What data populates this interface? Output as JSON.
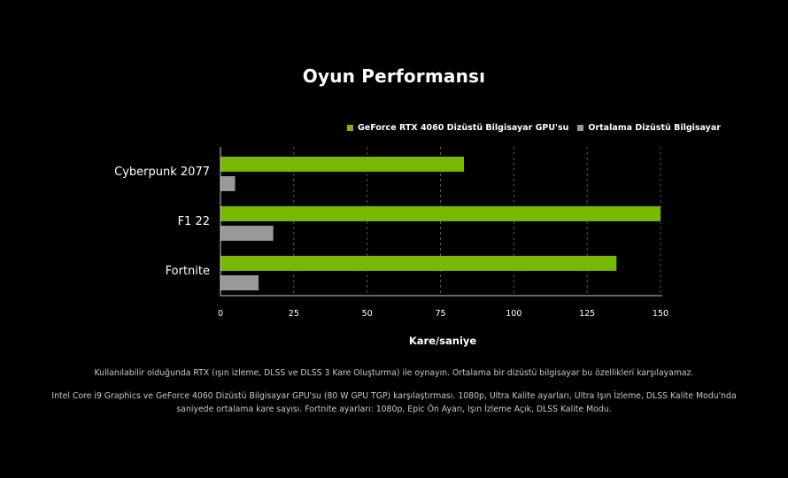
{
  "page": {
    "footnote_1": "Kullanılabilir olduğunda RTX (ışın izleme, DLSS ve DLSS 3 Kare Oluşturma) ile oynayın. Ortalama bir dizüstü bilgisayar bu özellikleri karşılayamaz.",
    "footnote_2": "Intel Core i9 Graphics ve GeForce 4060 Dizüstü Bilgisayar GPU'su (80 W GPU TGP) karşılaştırması. 1080p, Ultra Kalite ayarları, Ultra Işın İzleme, DLSS Kalite Modu'nda saniyede ortalama kare sayısı. Fortnite ayarları: 1080p, Epic Ön Ayarı, Işın İzleme Açık, DLSS Kalite Modu."
  },
  "chart_data": {
    "type": "bar",
    "orientation": "horizontal",
    "title": "Oyun Performansı",
    "xlabel": "Kare/saniye",
    "ylabel": "",
    "categories": [
      "Cyberpunk 2077",
      "F1 22",
      "Fortnite"
    ],
    "series": [
      {
        "name": "GeForce RTX 4060 Dizüstü Bilgisayar GPU'su",
        "values": [
          83,
          150,
          135
        ],
        "color": "#76b900"
      },
      {
        "name": "Ortalama Dizüstü Bilgisayar",
        "values": [
          5,
          18,
          13
        ],
        "color": "#999999"
      }
    ],
    "xlim": [
      0,
      150
    ],
    "xticks": [
      0,
      25,
      50,
      75,
      100,
      125,
      150
    ],
    "grid": "vertical dashed",
    "legend_position": "top-right"
  }
}
